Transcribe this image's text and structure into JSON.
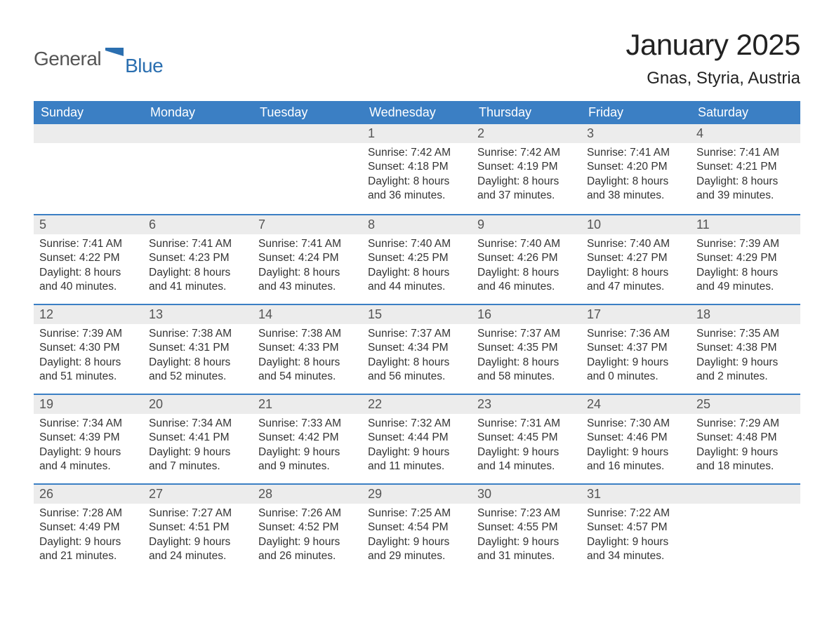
{
  "logo": {
    "word1": "General",
    "word2": "Blue"
  },
  "title": "January 2025",
  "location": "Gnas, Styria, Austria",
  "colors": {
    "header_bg": "#3b7fc4",
    "header_text": "#ffffff",
    "daynum_bg": "#ececec",
    "daynum_border": "#3b7fc4",
    "body_text": "#333333",
    "logo_gray": "#555555",
    "logo_blue": "#2b6fb0",
    "page_bg": "#ffffff"
  },
  "typography": {
    "title_fontsize": 42,
    "location_fontsize": 24,
    "dayheader_fontsize": 18,
    "daynum_fontsize": 18,
    "body_fontsize": 15.5,
    "font_family": "Arial"
  },
  "day_headers": [
    "Sunday",
    "Monday",
    "Tuesday",
    "Wednesday",
    "Thursday",
    "Friday",
    "Saturday"
  ],
  "weeks": [
    [
      null,
      null,
      null,
      {
        "n": "1",
        "sunrise": "7:42 AM",
        "sunset": "4:18 PM",
        "dl1": "8 hours",
        "dl2": "and 36 minutes."
      },
      {
        "n": "2",
        "sunrise": "7:42 AM",
        "sunset": "4:19 PM",
        "dl1": "8 hours",
        "dl2": "and 37 minutes."
      },
      {
        "n": "3",
        "sunrise": "7:41 AM",
        "sunset": "4:20 PM",
        "dl1": "8 hours",
        "dl2": "and 38 minutes."
      },
      {
        "n": "4",
        "sunrise": "7:41 AM",
        "sunset": "4:21 PM",
        "dl1": "8 hours",
        "dl2": "and 39 minutes."
      }
    ],
    [
      {
        "n": "5",
        "sunrise": "7:41 AM",
        "sunset": "4:22 PM",
        "dl1": "8 hours",
        "dl2": "and 40 minutes."
      },
      {
        "n": "6",
        "sunrise": "7:41 AM",
        "sunset": "4:23 PM",
        "dl1": "8 hours",
        "dl2": "and 41 minutes."
      },
      {
        "n": "7",
        "sunrise": "7:41 AM",
        "sunset": "4:24 PM",
        "dl1": "8 hours",
        "dl2": "and 43 minutes."
      },
      {
        "n": "8",
        "sunrise": "7:40 AM",
        "sunset": "4:25 PM",
        "dl1": "8 hours",
        "dl2": "and 44 minutes."
      },
      {
        "n": "9",
        "sunrise": "7:40 AM",
        "sunset": "4:26 PM",
        "dl1": "8 hours",
        "dl2": "and 46 minutes."
      },
      {
        "n": "10",
        "sunrise": "7:40 AM",
        "sunset": "4:27 PM",
        "dl1": "8 hours",
        "dl2": "and 47 minutes."
      },
      {
        "n": "11",
        "sunrise": "7:39 AM",
        "sunset": "4:29 PM",
        "dl1": "8 hours",
        "dl2": "and 49 minutes."
      }
    ],
    [
      {
        "n": "12",
        "sunrise": "7:39 AM",
        "sunset": "4:30 PM",
        "dl1": "8 hours",
        "dl2": "and 51 minutes."
      },
      {
        "n": "13",
        "sunrise": "7:38 AM",
        "sunset": "4:31 PM",
        "dl1": "8 hours",
        "dl2": "and 52 minutes."
      },
      {
        "n": "14",
        "sunrise": "7:38 AM",
        "sunset": "4:33 PM",
        "dl1": "8 hours",
        "dl2": "and 54 minutes."
      },
      {
        "n": "15",
        "sunrise": "7:37 AM",
        "sunset": "4:34 PM",
        "dl1": "8 hours",
        "dl2": "and 56 minutes."
      },
      {
        "n": "16",
        "sunrise": "7:37 AM",
        "sunset": "4:35 PM",
        "dl1": "8 hours",
        "dl2": "and 58 minutes."
      },
      {
        "n": "17",
        "sunrise": "7:36 AM",
        "sunset": "4:37 PM",
        "dl1": "9 hours",
        "dl2": "and 0 minutes."
      },
      {
        "n": "18",
        "sunrise": "7:35 AM",
        "sunset": "4:38 PM",
        "dl1": "9 hours",
        "dl2": "and 2 minutes."
      }
    ],
    [
      {
        "n": "19",
        "sunrise": "7:34 AM",
        "sunset": "4:39 PM",
        "dl1": "9 hours",
        "dl2": "and 4 minutes."
      },
      {
        "n": "20",
        "sunrise": "7:34 AM",
        "sunset": "4:41 PM",
        "dl1": "9 hours",
        "dl2": "and 7 minutes."
      },
      {
        "n": "21",
        "sunrise": "7:33 AM",
        "sunset": "4:42 PM",
        "dl1": "9 hours",
        "dl2": "and 9 minutes."
      },
      {
        "n": "22",
        "sunrise": "7:32 AM",
        "sunset": "4:44 PM",
        "dl1": "9 hours",
        "dl2": "and 11 minutes."
      },
      {
        "n": "23",
        "sunrise": "7:31 AM",
        "sunset": "4:45 PM",
        "dl1": "9 hours",
        "dl2": "and 14 minutes."
      },
      {
        "n": "24",
        "sunrise": "7:30 AM",
        "sunset": "4:46 PM",
        "dl1": "9 hours",
        "dl2": "and 16 minutes."
      },
      {
        "n": "25",
        "sunrise": "7:29 AM",
        "sunset": "4:48 PM",
        "dl1": "9 hours",
        "dl2": "and 18 minutes."
      }
    ],
    [
      {
        "n": "26",
        "sunrise": "7:28 AM",
        "sunset": "4:49 PM",
        "dl1": "9 hours",
        "dl2": "and 21 minutes."
      },
      {
        "n": "27",
        "sunrise": "7:27 AM",
        "sunset": "4:51 PM",
        "dl1": "9 hours",
        "dl2": "and 24 minutes."
      },
      {
        "n": "28",
        "sunrise": "7:26 AM",
        "sunset": "4:52 PM",
        "dl1": "9 hours",
        "dl2": "and 26 minutes."
      },
      {
        "n": "29",
        "sunrise": "7:25 AM",
        "sunset": "4:54 PM",
        "dl1": "9 hours",
        "dl2": "and 29 minutes."
      },
      {
        "n": "30",
        "sunrise": "7:23 AM",
        "sunset": "4:55 PM",
        "dl1": "9 hours",
        "dl2": "and 31 minutes."
      },
      {
        "n": "31",
        "sunrise": "7:22 AM",
        "sunset": "4:57 PM",
        "dl1": "9 hours",
        "dl2": "and 34 minutes."
      },
      null
    ]
  ],
  "labels": {
    "sunrise": "Sunrise: ",
    "sunset": "Sunset: ",
    "daylight": "Daylight: "
  }
}
